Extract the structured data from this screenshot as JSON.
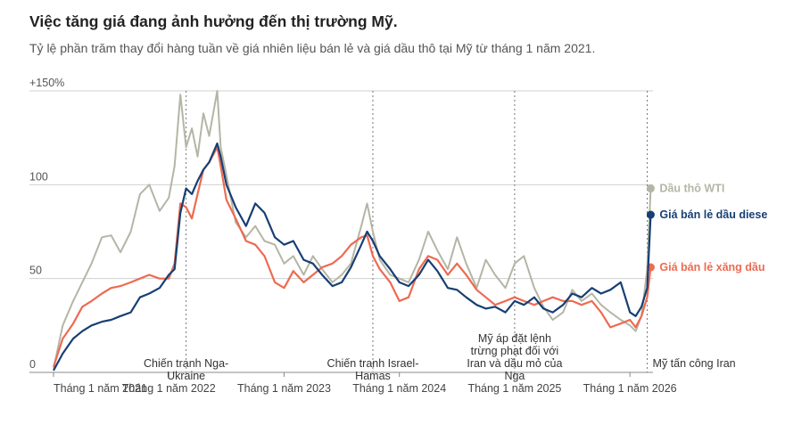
{
  "header": {
    "title": "Việc tăng giá đang ảnh hưởng đến thị trường Mỹ.",
    "subtitle": "Tỷ lệ phần trăm thay đổi hàng tuần về giá nhiên liệu bán lẻ và giá dầu thô tại Mỹ từ tháng 1 năm 2021."
  },
  "colors": {
    "wti": "#b5b5a6",
    "diesel": "#173f73",
    "gasoline": "#ee6a50",
    "grid": "#d0d0d0"
  },
  "chart_data": {
    "type": "line",
    "title": "Việc tăng giá đang ảnh hưởng đến thị trường Mỹ.",
    "subtitle": "Tỷ lệ phần trăm thay đổi hàng tuần về giá nhiên liệu bán lẻ và giá dầu thô tại Mỹ từ tháng 1 năm 2021.",
    "xlim": [
      2021.0,
      2026.2
    ],
    "ylim": [
      0,
      150
    ],
    "yticks": [
      {
        "value": 150,
        "label": "+150%"
      },
      {
        "value": 100,
        "label": "100"
      },
      {
        "value": 50,
        "label": "50"
      },
      {
        "value": 0,
        "label": "0"
      }
    ],
    "xticks": [
      {
        "value": 2021.0,
        "label": "Tháng 1 năm 2021"
      },
      {
        "value": 2022.0,
        "label": "Tháng 1 năm 2022"
      },
      {
        "value": 2023.0,
        "label": "Tháng 1 năm 2023"
      },
      {
        "value": 2024.0,
        "label": "Tháng 1 năm 2024"
      },
      {
        "value": 2025.0,
        "label": "Tháng 1 năm 2025"
      },
      {
        "value": 2026.0,
        "label": "Tháng 1 năm 2026"
      }
    ],
    "annotations": [
      {
        "x": 2022.15,
        "lines": [
          "Chiến tranh Nga-",
          "Ukraine"
        ]
      },
      {
        "x": 2023.77,
        "lines": [
          "Chiến tranh Israel-",
          "Hamas"
        ]
      },
      {
        "x": 2025.0,
        "lines": [
          "Mỹ áp đặt lệnh",
          "trừng phạt đối với",
          "Iran và dầu mỏ của",
          "Nga"
        ]
      },
      {
        "x": 2026.15,
        "lines": [
          "Mỹ tấn công Iran"
        ]
      }
    ],
    "grid": true,
    "series": [
      {
        "name": "Dầu thô WTI",
        "color": "#b5b5a6",
        "x": [
          2021.0,
          2021.08,
          2021.17,
          2021.25,
          2021.33,
          2021.42,
          2021.5,
          2021.58,
          2021.67,
          2021.75,
          2021.83,
          2021.92,
          2022.0,
          2022.05,
          2022.1,
          2022.15,
          2022.2,
          2022.25,
          2022.3,
          2022.35,
          2022.42,
          2022.45,
          2022.5,
          2022.58,
          2022.67,
          2022.75,
          2022.83,
          2022.92,
          2023.0,
          2023.08,
          2023.17,
          2023.25,
          2023.33,
          2023.42,
          2023.5,
          2023.58,
          2023.67,
          2023.72,
          2023.77,
          2023.83,
          2023.92,
          2024.0,
          2024.08,
          2024.17,
          2024.25,
          2024.33,
          2024.42,
          2024.5,
          2024.58,
          2024.67,
          2024.75,
          2024.83,
          2024.92,
          2025.0,
          2025.08,
          2025.17,
          2025.25,
          2025.33,
          2025.42,
          2025.5,
          2025.58,
          2025.67,
          2025.75,
          2025.83,
          2025.92,
          2026.0,
          2026.05,
          2026.1,
          2026.15,
          2026.18
        ],
        "values": [
          2,
          25,
          38,
          48,
          58,
          72,
          73,
          64,
          75,
          95,
          100,
          86,
          93,
          110,
          148,
          120,
          130,
          115,
          138,
          126,
          150,
          120,
          105,
          80,
          72,
          78,
          70,
          68,
          58,
          62,
          52,
          62,
          55,
          48,
          52,
          58,
          78,
          90,
          75,
          60,
          52,
          50,
          48,
          60,
          75,
          65,
          55,
          72,
          58,
          45,
          60,
          52,
          45,
          58,
          62,
          45,
          35,
          28,
          32,
          44,
          38,
          42,
          36,
          32,
          28,
          25,
          22,
          30,
          55,
          98
        ]
      },
      {
        "name": "Giá bán lẻ dầu diese",
        "color": "#173f73",
        "x": [
          2021.0,
          2021.08,
          2021.17,
          2021.25,
          2021.33,
          2021.42,
          2021.5,
          2021.58,
          2021.67,
          2021.75,
          2021.83,
          2021.92,
          2022.0,
          2022.05,
          2022.1,
          2022.15,
          2022.2,
          2022.25,
          2022.3,
          2022.35,
          2022.42,
          2022.45,
          2022.5,
          2022.58,
          2022.67,
          2022.75,
          2022.83,
          2022.92,
          2023.0,
          2023.08,
          2023.17,
          2023.25,
          2023.33,
          2023.42,
          2023.5,
          2023.58,
          2023.67,
          2023.72,
          2023.77,
          2023.83,
          2023.92,
          2024.0,
          2024.08,
          2024.17,
          2024.25,
          2024.33,
          2024.42,
          2024.5,
          2024.58,
          2024.67,
          2024.75,
          2024.83,
          2024.92,
          2025.0,
          2025.08,
          2025.17,
          2025.25,
          2025.33,
          2025.42,
          2025.5,
          2025.58,
          2025.67,
          2025.75,
          2025.83,
          2025.92,
          2026.0,
          2026.05,
          2026.1,
          2026.15,
          2026.18
        ],
        "values": [
          1,
          10,
          18,
          22,
          25,
          27,
          28,
          30,
          32,
          40,
          42,
          45,
          52,
          55,
          85,
          98,
          95,
          102,
          108,
          112,
          122,
          115,
          100,
          88,
          78,
          90,
          85,
          72,
          68,
          70,
          60,
          58,
          52,
          46,
          48,
          56,
          68,
          75,
          70,
          62,
          55,
          48,
          46,
          52,
          60,
          54,
          45,
          44,
          40,
          36,
          34,
          35,
          32,
          38,
          36,
          40,
          34,
          32,
          36,
          42,
          40,
          45,
          42,
          44,
          48,
          32,
          30,
          35,
          45,
          84
        ]
      },
      {
        "name": "Giá bán lẻ xăng dầu",
        "color": "#ee6a50",
        "x": [
          2021.0,
          2021.08,
          2021.17,
          2021.25,
          2021.33,
          2021.42,
          2021.5,
          2021.58,
          2021.67,
          2021.75,
          2021.83,
          2021.92,
          2022.0,
          2022.05,
          2022.1,
          2022.15,
          2022.2,
          2022.25,
          2022.3,
          2022.35,
          2022.42,
          2022.45,
          2022.5,
          2022.58,
          2022.67,
          2022.75,
          2022.83,
          2022.92,
          2023.0,
          2023.08,
          2023.17,
          2023.25,
          2023.33,
          2023.42,
          2023.5,
          2023.58,
          2023.67,
          2023.72,
          2023.77,
          2023.83,
          2023.92,
          2024.0,
          2024.08,
          2024.17,
          2024.25,
          2024.33,
          2024.42,
          2024.5,
          2024.58,
          2024.67,
          2024.75,
          2024.83,
          2024.92,
          2025.0,
          2025.08,
          2025.17,
          2025.25,
          2025.33,
          2025.42,
          2025.5,
          2025.58,
          2025.67,
          2025.75,
          2025.83,
          2025.92,
          2026.0,
          2026.05,
          2026.1,
          2026.15,
          2026.18
        ],
        "values": [
          3,
          18,
          26,
          35,
          38,
          42,
          45,
          46,
          48,
          50,
          52,
          50,
          50,
          58,
          90,
          88,
          82,
          95,
          108,
          112,
          120,
          110,
          92,
          82,
          70,
          68,
          62,
          48,
          45,
          54,
          48,
          52,
          56,
          58,
          62,
          68,
          72,
          73,
          62,
          55,
          48,
          38,
          40,
          55,
          62,
          60,
          52,
          58,
          52,
          44,
          40,
          36,
          38,
          40,
          38,
          36,
          38,
          40,
          38,
          38,
          36,
          38,
          32,
          24,
          26,
          28,
          24,
          30,
          40,
          56
        ]
      }
    ]
  }
}
